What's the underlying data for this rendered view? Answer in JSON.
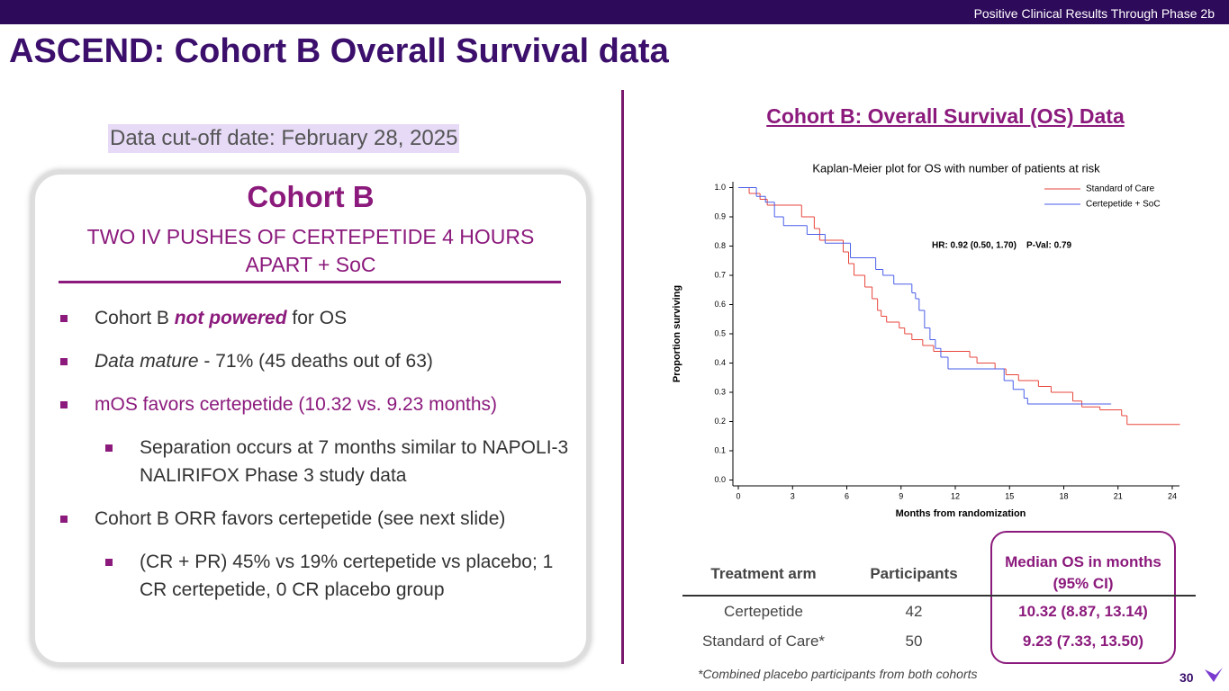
{
  "header": {
    "banner": "Positive Clinical Results Through Phase 2b",
    "title": "ASCEND: Cohort B Overall Survival data",
    "page_number": "30"
  },
  "left": {
    "cutoff": "Data cut-off date: February 28, 2025",
    "box_title": "Cohort B",
    "box_subtitle": "TWO IV PUSHES OF CERTEPETIDE 4 HOURS APART + SoC",
    "bullets": [
      {
        "level": 1,
        "parts": [
          {
            "text": "Cohort B ",
            "style": "plain"
          },
          {
            "text": "not powered",
            "style": "strong-em"
          },
          {
            "text": " for OS",
            "style": "plain"
          }
        ]
      },
      {
        "level": 1,
        "parts": [
          {
            "text": "Data mature",
            "style": "em"
          },
          {
            "text": " - 71% (45 deaths out of 63)",
            "style": "plain"
          }
        ]
      },
      {
        "level": 1,
        "parts": [
          {
            "text": "mOS favors certepetide (10.32 vs. 9.23 months)",
            "style": "accent"
          }
        ]
      },
      {
        "level": 2,
        "parts": [
          {
            "text": "Separation occurs at 7 months similar to NAPOLI-3 NALIRIFOX Phase 3 study data",
            "style": "plain"
          }
        ]
      },
      {
        "level": 1,
        "parts": [
          {
            "text": "Cohort B ORR favors certepetide (see next slide)",
            "style": "plain"
          }
        ]
      },
      {
        "level": 2,
        "parts": [
          {
            "text": "(CR + PR) 45% vs 19% certepetide vs placebo; 1 CR certepetide, 0 CR placebo group",
            "style": "plain"
          }
        ]
      }
    ]
  },
  "right": {
    "heading": "Cohort B: Overall Survival (OS) Data",
    "table": {
      "headers": [
        "Treatment arm",
        "Participants",
        "Median OS in months (95% CI)"
      ],
      "rows": [
        [
          "Certepetide",
          "42",
          "10.32 (8.87, 13.14)"
        ],
        [
          "Standard of Care*",
          "50",
          "9.23 (7.33, 13.50)"
        ]
      ]
    },
    "footnote": "*Combined placebo participants from both cohorts"
  },
  "chart_data": {
    "type": "step",
    "title": "Kaplan-Meier plot for OS with number of patients at risk",
    "x_label": "Months from randomization",
    "y_label": "Proportion surviving",
    "annotation": "HR: 0.92 (0.50, 1.70)    P-Val: 0.79",
    "xlim": [
      -0.3,
      24.4
    ],
    "xticks": [
      0,
      3,
      6,
      9,
      12,
      15,
      18,
      21,
      24
    ],
    "ylim": [
      -0.02,
      1.02
    ],
    "yticks": [
      {
        "value": 0,
        "label": "0.0"
      },
      0.1,
      0.2,
      0.3,
      0.4,
      0.5,
      0.6,
      0.7,
      0.8,
      0.9,
      {
        "value": 1,
        "label": "1.0"
      }
    ],
    "legend": "top-right",
    "series": [
      {
        "name": "Standard of Care",
        "color": "#e8463c",
        "x": [
          0,
          0.6,
          1.2,
          1.6,
          3.5,
          4.2,
          4.5,
          5.8,
          6.1,
          6.4,
          7.0,
          7.4,
          7.7,
          7.9,
          8.2,
          8.9,
          9.2,
          9.6,
          10.2,
          10.8,
          12.8,
          13.2,
          14.2,
          14.8,
          15.5,
          16.6,
          17.3,
          18.5,
          19.0,
          20.0,
          21.2,
          21.5,
          24.4
        ],
        "values": [
          1.0,
          0.98,
          0.96,
          0.94,
          0.9,
          0.86,
          0.82,
          0.78,
          0.74,
          0.7,
          0.66,
          0.62,
          0.58,
          0.56,
          0.54,
          0.52,
          0.5,
          0.48,
          0.46,
          0.44,
          0.42,
          0.4,
          0.38,
          0.36,
          0.34,
          0.32,
          0.3,
          0.27,
          0.25,
          0.24,
          0.22,
          0.19,
          0.19
        ]
      },
      {
        "name": "Certepetide + SoC",
        "color": "#4a5ee8",
        "x": [
          0,
          1,
          1.5,
          2,
          2.5,
          3.8,
          4.8,
          6.2,
          7.6,
          8,
          8.6,
          9.6,
          9.8,
          10,
          10.3,
          10.6,
          10.9,
          11.2,
          11.6,
          14.7,
          15.2,
          15.8,
          16,
          20.6
        ],
        "values": [
          1.0,
          0.97,
          0.95,
          0.9,
          0.87,
          0.84,
          0.81,
          0.76,
          0.72,
          0.7,
          0.67,
          0.64,
          0.62,
          0.58,
          0.52,
          0.48,
          0.45,
          0.42,
          0.38,
          0.34,
          0.31,
          0.28,
          0.26,
          0.26
        ]
      }
    ]
  }
}
